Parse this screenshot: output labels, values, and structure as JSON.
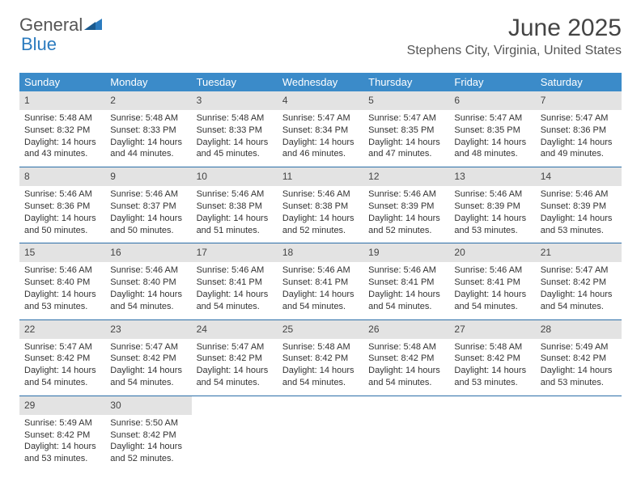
{
  "brand": {
    "general": "General",
    "blue": "Blue"
  },
  "title": "June 2025",
  "location": "Stephens City, Virginia, United States",
  "colors": {
    "header_bar": "#3b8bc9",
    "header_text": "#ffffff",
    "daynum_bg": "#e3e3e3",
    "week_border": "#2b6ea8",
    "page_bg": "#ffffff",
    "title_color": "#444444",
    "body_text": "#333333"
  },
  "weekdays": [
    "Sunday",
    "Monday",
    "Tuesday",
    "Wednesday",
    "Thursday",
    "Friday",
    "Saturday"
  ],
  "weeks": [
    [
      {
        "n": "1",
        "sr": "Sunrise: 5:48 AM",
        "ss": "Sunset: 8:32 PM",
        "dl": "Daylight: 14 hours and 43 minutes."
      },
      {
        "n": "2",
        "sr": "Sunrise: 5:48 AM",
        "ss": "Sunset: 8:33 PM",
        "dl": "Daylight: 14 hours and 44 minutes."
      },
      {
        "n": "3",
        "sr": "Sunrise: 5:48 AM",
        "ss": "Sunset: 8:33 PM",
        "dl": "Daylight: 14 hours and 45 minutes."
      },
      {
        "n": "4",
        "sr": "Sunrise: 5:47 AM",
        "ss": "Sunset: 8:34 PM",
        "dl": "Daylight: 14 hours and 46 minutes."
      },
      {
        "n": "5",
        "sr": "Sunrise: 5:47 AM",
        "ss": "Sunset: 8:35 PM",
        "dl": "Daylight: 14 hours and 47 minutes."
      },
      {
        "n": "6",
        "sr": "Sunrise: 5:47 AM",
        "ss": "Sunset: 8:35 PM",
        "dl": "Daylight: 14 hours and 48 minutes."
      },
      {
        "n": "7",
        "sr": "Sunrise: 5:47 AM",
        "ss": "Sunset: 8:36 PM",
        "dl": "Daylight: 14 hours and 49 minutes."
      }
    ],
    [
      {
        "n": "8",
        "sr": "Sunrise: 5:46 AM",
        "ss": "Sunset: 8:36 PM",
        "dl": "Daylight: 14 hours and 50 minutes."
      },
      {
        "n": "9",
        "sr": "Sunrise: 5:46 AM",
        "ss": "Sunset: 8:37 PM",
        "dl": "Daylight: 14 hours and 50 minutes."
      },
      {
        "n": "10",
        "sr": "Sunrise: 5:46 AM",
        "ss": "Sunset: 8:38 PM",
        "dl": "Daylight: 14 hours and 51 minutes."
      },
      {
        "n": "11",
        "sr": "Sunrise: 5:46 AM",
        "ss": "Sunset: 8:38 PM",
        "dl": "Daylight: 14 hours and 52 minutes."
      },
      {
        "n": "12",
        "sr": "Sunrise: 5:46 AM",
        "ss": "Sunset: 8:39 PM",
        "dl": "Daylight: 14 hours and 52 minutes."
      },
      {
        "n": "13",
        "sr": "Sunrise: 5:46 AM",
        "ss": "Sunset: 8:39 PM",
        "dl": "Daylight: 14 hours and 53 minutes."
      },
      {
        "n": "14",
        "sr": "Sunrise: 5:46 AM",
        "ss": "Sunset: 8:39 PM",
        "dl": "Daylight: 14 hours and 53 minutes."
      }
    ],
    [
      {
        "n": "15",
        "sr": "Sunrise: 5:46 AM",
        "ss": "Sunset: 8:40 PM",
        "dl": "Daylight: 14 hours and 53 minutes."
      },
      {
        "n": "16",
        "sr": "Sunrise: 5:46 AM",
        "ss": "Sunset: 8:40 PM",
        "dl": "Daylight: 14 hours and 54 minutes."
      },
      {
        "n": "17",
        "sr": "Sunrise: 5:46 AM",
        "ss": "Sunset: 8:41 PM",
        "dl": "Daylight: 14 hours and 54 minutes."
      },
      {
        "n": "18",
        "sr": "Sunrise: 5:46 AM",
        "ss": "Sunset: 8:41 PM",
        "dl": "Daylight: 14 hours and 54 minutes."
      },
      {
        "n": "19",
        "sr": "Sunrise: 5:46 AM",
        "ss": "Sunset: 8:41 PM",
        "dl": "Daylight: 14 hours and 54 minutes."
      },
      {
        "n": "20",
        "sr": "Sunrise: 5:46 AM",
        "ss": "Sunset: 8:41 PM",
        "dl": "Daylight: 14 hours and 54 minutes."
      },
      {
        "n": "21",
        "sr": "Sunrise: 5:47 AM",
        "ss": "Sunset: 8:42 PM",
        "dl": "Daylight: 14 hours and 54 minutes."
      }
    ],
    [
      {
        "n": "22",
        "sr": "Sunrise: 5:47 AM",
        "ss": "Sunset: 8:42 PM",
        "dl": "Daylight: 14 hours and 54 minutes."
      },
      {
        "n": "23",
        "sr": "Sunrise: 5:47 AM",
        "ss": "Sunset: 8:42 PM",
        "dl": "Daylight: 14 hours and 54 minutes."
      },
      {
        "n": "24",
        "sr": "Sunrise: 5:47 AM",
        "ss": "Sunset: 8:42 PM",
        "dl": "Daylight: 14 hours and 54 minutes."
      },
      {
        "n": "25",
        "sr": "Sunrise: 5:48 AM",
        "ss": "Sunset: 8:42 PM",
        "dl": "Daylight: 14 hours and 54 minutes."
      },
      {
        "n": "26",
        "sr": "Sunrise: 5:48 AM",
        "ss": "Sunset: 8:42 PM",
        "dl": "Daylight: 14 hours and 54 minutes."
      },
      {
        "n": "27",
        "sr": "Sunrise: 5:48 AM",
        "ss": "Sunset: 8:42 PM",
        "dl": "Daylight: 14 hours and 53 minutes."
      },
      {
        "n": "28",
        "sr": "Sunrise: 5:49 AM",
        "ss": "Sunset: 8:42 PM",
        "dl": "Daylight: 14 hours and 53 minutes."
      }
    ],
    [
      {
        "n": "29",
        "sr": "Sunrise: 5:49 AM",
        "ss": "Sunset: 8:42 PM",
        "dl": "Daylight: 14 hours and 53 minutes."
      },
      {
        "n": "30",
        "sr": "Sunrise: 5:50 AM",
        "ss": "Sunset: 8:42 PM",
        "dl": "Daylight: 14 hours and 52 minutes."
      },
      null,
      null,
      null,
      null,
      null
    ]
  ]
}
